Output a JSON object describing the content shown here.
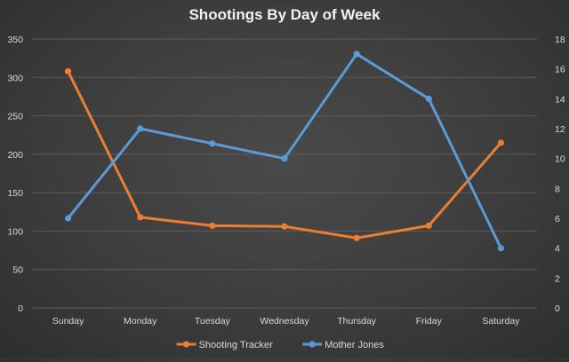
{
  "chart_data": {
    "type": "line",
    "title": "Shootings By Day of Week",
    "categories": [
      "Sunday",
      "Monday",
      "Tuesday",
      "Wednesday",
      "Thursday",
      "Friday",
      "Saturday"
    ],
    "y_left": {
      "min": 0,
      "max": 350,
      "ticks": [
        0,
        50,
        100,
        150,
        200,
        250,
        300,
        350
      ]
    },
    "y_right": {
      "min": 0,
      "max": 18,
      "ticks": [
        0,
        2,
        4,
        6,
        8,
        10,
        12,
        14,
        16,
        18
      ]
    },
    "grid": "horizontal",
    "legend_position": "bottom",
    "series": [
      {
        "name": "Shooting Tracker",
        "axis": "left",
        "color": "#ed7d31",
        "values": [
          308,
          118,
          107,
          106,
          91,
          107,
          215
        ]
      },
      {
        "name": "Mother Jones",
        "axis": "right",
        "color": "#5b9bd5",
        "values": [
          6,
          12,
          11,
          10,
          17,
          14,
          4
        ]
      }
    ]
  }
}
